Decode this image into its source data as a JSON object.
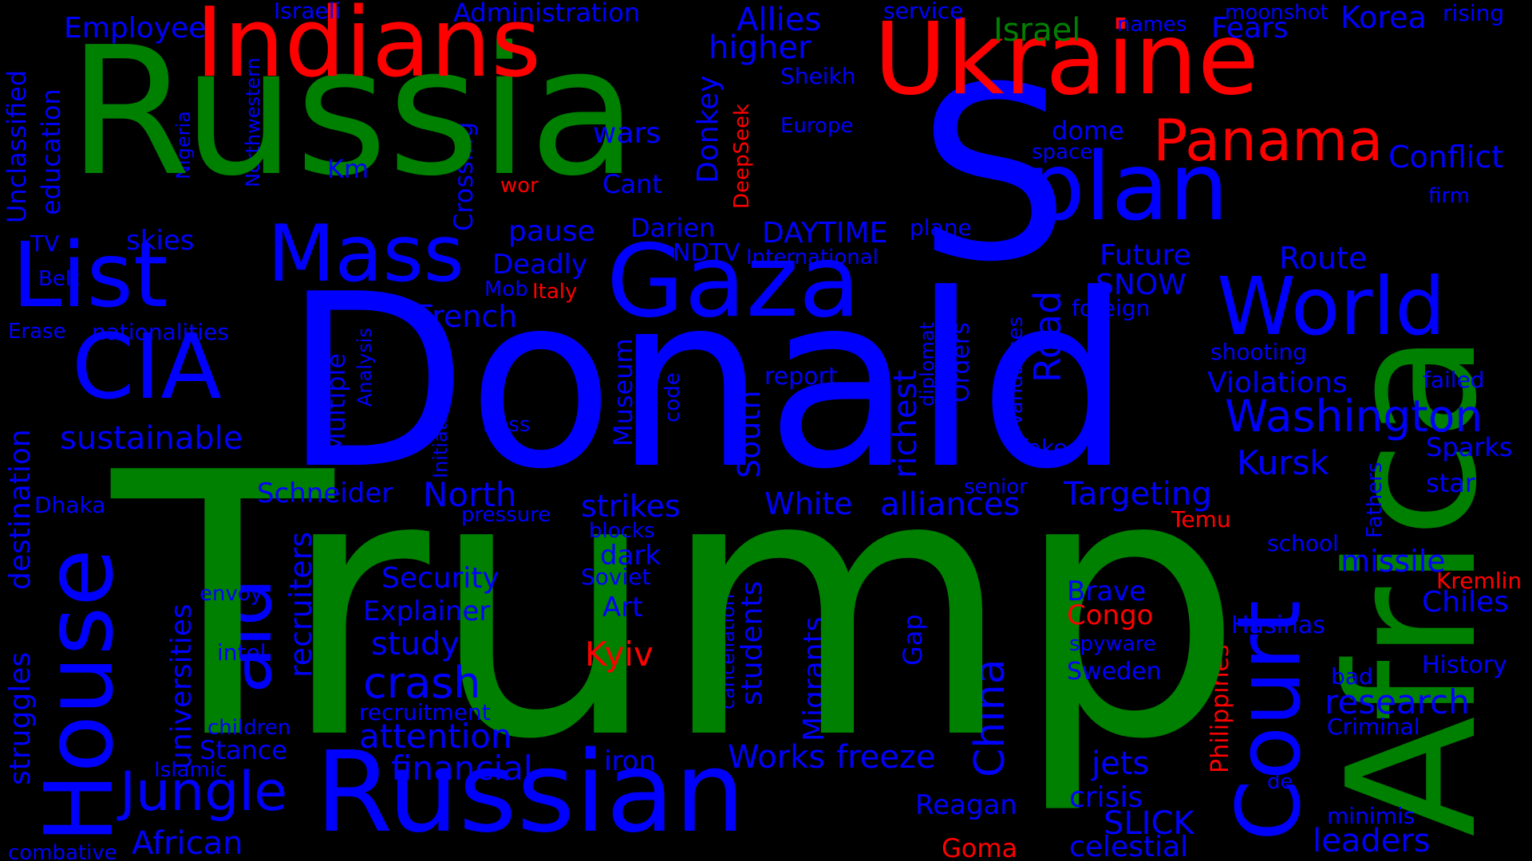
{
  "background": "#000000",
  "palette": {
    "green": "#008000",
    "blue": "#0000ff",
    "red": "#ff0000"
  },
  "words": {
    "trump": "Trump",
    "donald": "Donald",
    "russia": "Russia",
    "africa": "Africa",
    "s": "S",
    "indians": "Indians",
    "ukraine": "Ukraine",
    "russian": "Russian",
    "gaza": "Gaza",
    "plan": "plan",
    "cia": "CIA",
    "list": "List",
    "mass": "Mass",
    "house": "House",
    "court": "Court",
    "world": "World",
    "panama": "Panama",
    "aid": "aid",
    "jungle": "Jungle",
    "washington": "Washington",
    "crash": "crash",
    "china": "China",
    "israel": "Israel",
    "african": "African",
    "white": "White",
    "alliances": "alliances",
    "targeting": "Targeting",
    "kursk": "Kursk",
    "research": "research",
    "missile": "missile",
    "sustainable": "sustainable",
    "schneider": "Schneider",
    "north": "North",
    "strikes": "strikes",
    "security": "Security",
    "explainer": "Explainer",
    "study": "study",
    "attention": "attention",
    "financial": "financial",
    "works": "Works",
    "freeze": "freeze",
    "jets": "jets",
    "crisis": "crisis",
    "slick": "SLICK",
    "celestial": "celestial",
    "leaders": "leaders",
    "reagan": "Reagan",
    "goma": "Goma",
    "kyiv": "Kyiv",
    "congo": "Congo",
    "brave": "Brave",
    "sweden": "Sweden",
    "chiles": "Chiles",
    "history": "History",
    "violations": "Violations",
    "sparks": "Sparks",
    "star": "star",
    "conflict": "Conflict",
    "korea": "Korea",
    "fears": "Fears",
    "allies": "Allies",
    "higher": "higher",
    "administration": "Administration",
    "employee": "Employee",
    "education": "education",
    "unclassified": "Unclassified",
    "nigeria": "Nigeria",
    "northwestern": "Northwestern",
    "crossing": "Crossing",
    "donkey": "Donkey",
    "deepseek": "DeepSeek",
    "sheikh": "Sheikh",
    "europe": "Europe",
    "wars": "wars",
    "cant": "Cant",
    "wor": "wor",
    "km": "Km",
    "tv": "TV",
    "skies": "skies",
    "belt": "Belt",
    "erase": "Erase",
    "nationalities": "nationalities",
    "pause": "pause",
    "darien": "Darien",
    "daytime": "DAYTIME",
    "plane": "plane",
    "international": "International",
    "ndtv": "NDTV",
    "deadly": "Deadly",
    "mob": "Mob",
    "italy": "Italy",
    "french": "French",
    "future": "Future",
    "route": "Route",
    "snow": "SNOW",
    "road": "Road",
    "foreign": "foreign",
    "dome": "dome",
    "space": "space",
    "firm": "firm",
    "service": "service",
    "names": "names",
    "moonshot": "moonshot",
    "rising": "rising",
    "israeli": "Israeli",
    "shooting": "shooting",
    "failed": "failed",
    "report": "report",
    "museum": "Museum",
    "code": "code",
    "south": "South",
    "richest": "richest",
    "diplomat": "diplomat",
    "orders": "Orders",
    "vandalises": "Vandalises",
    "fake": "fake",
    "senior": "senior",
    "temu": "Temu",
    "fathers": "Fathers",
    "school": "school",
    "kremlin": "Kremlin",
    "hasinas": "Hasinas",
    "spyware": "spyware",
    "bad": "bad",
    "criminal": "Criminal",
    "de": "de",
    "minimis": "minimis",
    "philippines": "Philippines",
    "gap": "Gap",
    "students": "students",
    "cancellation": "cancellation",
    "migrants": "Migrants",
    "iron": "iron",
    "art": "Art",
    "soviet": "Soviet",
    "dark": "dark",
    "blocks": "blocks",
    "pressure": "pressure",
    "boss": "boss",
    "initiative": "Initiative",
    "analysis": "Analysis",
    "multiple": "Multiple",
    "recruiters": "recruiters",
    "universities": "universities",
    "dhaka": "Dhaka",
    "envoy": "envoy",
    "intel": "intel",
    "children": "children",
    "stance": "Stance",
    "islamic": "Islamic",
    "struggles": "struggles",
    "destination": "destination",
    "combative": "combative",
    "recruitment": "recruitment"
  }
}
